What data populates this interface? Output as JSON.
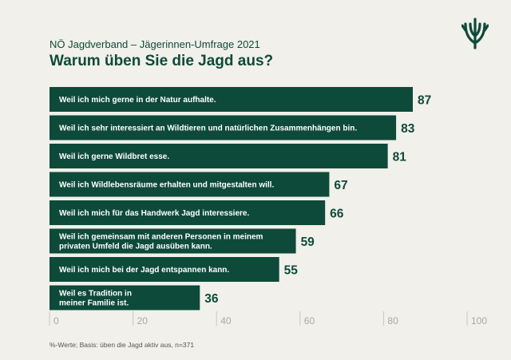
{
  "header": {
    "subtitle": "NÖ Jagdverband – Jägerinnen-Umfrage 2021",
    "title": "Warum üben Sie die Jagd aus?"
  },
  "footnote": "%-Werte; Basis: üben die Jagd aktiv aus, n=371",
  "colors": {
    "bar": "#0e4a3a",
    "background": "#f1f0ea",
    "grid": "#c9c9c2"
  },
  "logo": {
    "icon": "antler-logo-icon"
  },
  "chart_data": {
    "type": "bar",
    "orientation": "horizontal",
    "title": "Warum üben Sie die Jagd aus?",
    "xlim": [
      0,
      100
    ],
    "ticks": [
      0,
      20,
      40,
      60,
      80,
      100
    ],
    "tick_labels": [
      "0",
      "20",
      "40",
      "60",
      "80",
      "100"
    ],
    "categories": [
      [
        "Weil ich mich gerne in der Natur aufhalte."
      ],
      [
        "Weil ich sehr interessiert an Wildtieren und natürlichen Zusammenhängen bin."
      ],
      [
        "Weil ich gerne Wildbret esse."
      ],
      [
        "Weil ich Wildlebensräume erhalten und mitgestalten will."
      ],
      [
        "Weil ich mich für das Handwerk Jagd interessiere."
      ],
      [
        "Weil ich gemeinsam mit anderen Personen in meinem",
        "privaten Umfeld die Jagd ausüben kann."
      ],
      [
        "Weil ich mich bei der Jagd entspannen kann."
      ],
      [
        "Weil es Tradition in",
        "meiner Familie ist."
      ]
    ],
    "values": [
      87,
      83,
      81,
      67,
      66,
      59,
      55,
      36
    ],
    "value_labels": [
      "87",
      "83",
      "81",
      "67",
      "66",
      "59",
      "55",
      "36"
    ]
  }
}
